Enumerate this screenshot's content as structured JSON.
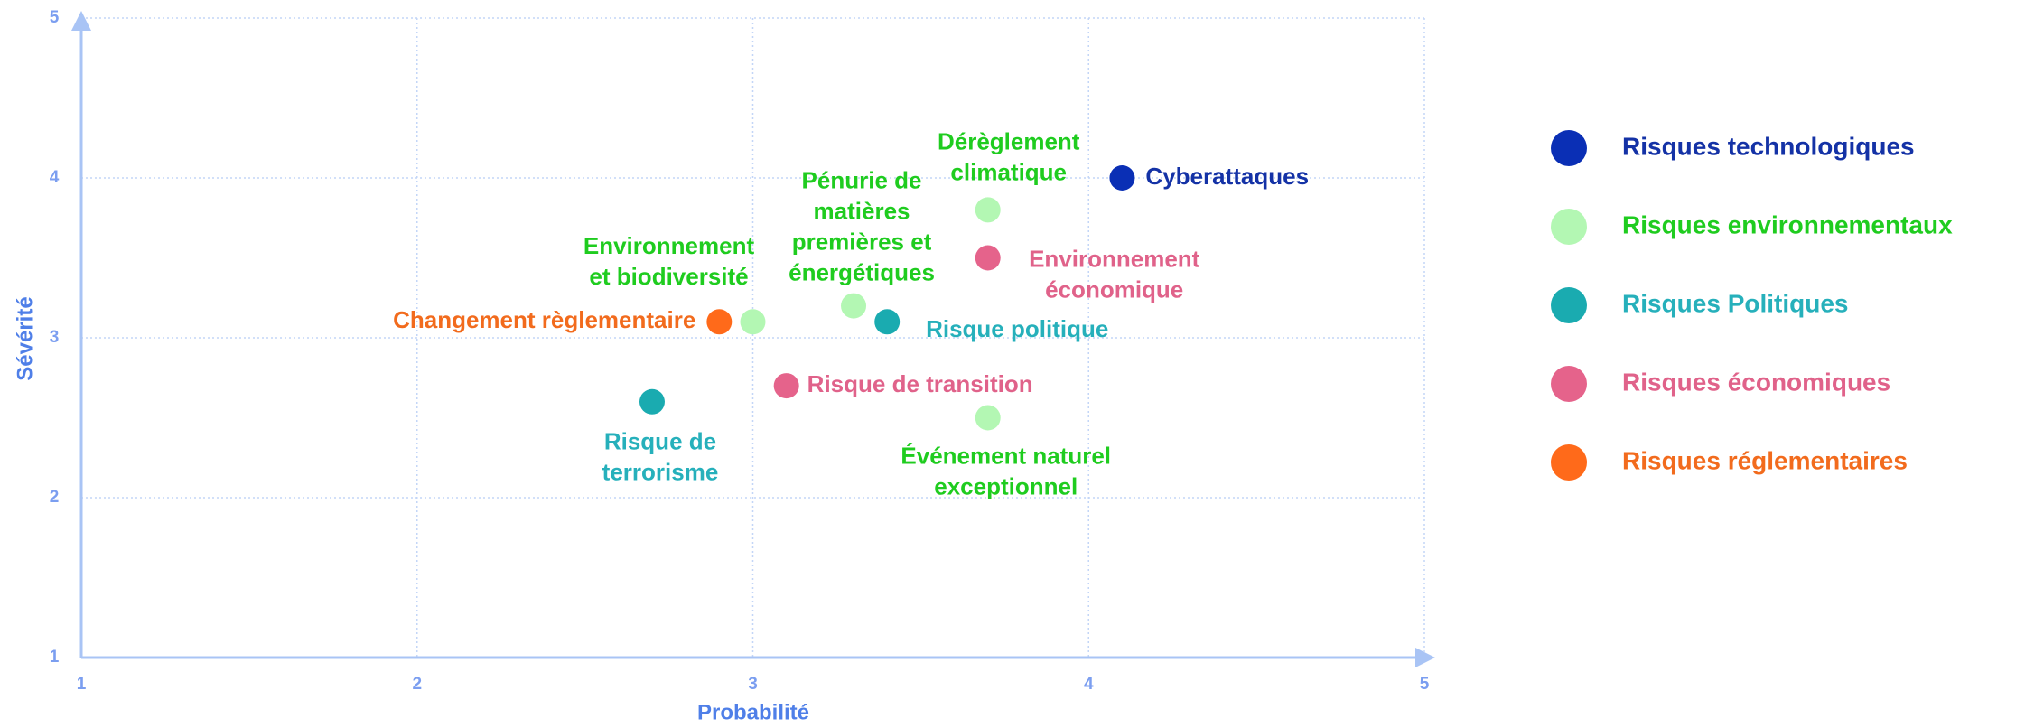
{
  "chart_data": {
    "type": "scatter",
    "xlabel": "Probabilité",
    "ylabel": "Sévérité",
    "xlim": [
      1,
      5
    ],
    "ylim": [
      1,
      5
    ],
    "xticks": [
      1,
      2,
      3,
      4,
      5
    ],
    "yticks": [
      1,
      2,
      3,
      4,
      5
    ],
    "grid": true,
    "legend": "right",
    "series": [
      {
        "name": "Risques technologiques",
        "color": "#0a2fb5",
        "text_color": "#1432a6",
        "x": [
          4.1
        ],
        "y": [
          4.0
        ],
        "labels": [
          [
            "Cyberattaques"
          ]
        ]
      },
      {
        "name": "Risques environnementaux",
        "color": "#b3f7b3",
        "text_color": "#1fcc1f",
        "x": [
          3.7,
          3.3,
          3.0,
          3.7
        ],
        "y": [
          3.8,
          3.2,
          3.1,
          2.5
        ],
        "labels": [
          [
            "Dérèglement",
            "climatique"
          ],
          [
            "Pénurie de",
            "matières",
            "premières et",
            "énergétiques"
          ],
          [
            "Environnement",
            "et biodiversité"
          ],
          [
            "Événement naturel",
            "exceptionnel"
          ]
        ]
      },
      {
        "name": "Risques Politiques",
        "color": "#1aabb0",
        "text_color": "#26b0bb",
        "x": [
          3.4,
          2.7
        ],
        "y": [
          3.1,
          2.6
        ],
        "labels": [
          [
            "Risque politique"
          ],
          [
            "Risque de",
            "terrorisme"
          ]
        ]
      },
      {
        "name": "Risques économiques",
        "color": "#e5638b",
        "text_color": "#e0628a",
        "x": [
          3.7,
          3.1
        ],
        "y": [
          3.5,
          2.7
        ],
        "labels": [
          [
            "Environnement",
            "économique"
          ],
          [
            "Risque de transition"
          ]
        ]
      },
      {
        "name": "Risques réglementaires",
        "color": "#ff6a1a",
        "text_color": "#f26b1d",
        "x": [
          2.9
        ],
        "y": [
          3.1
        ],
        "labels": [
          [
            "Changement règlementaire"
          ]
        ]
      }
    ]
  }
}
